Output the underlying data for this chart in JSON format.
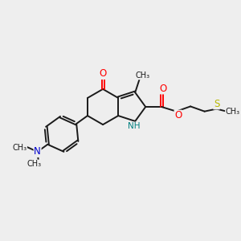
{
  "background_color": "#eeeeee",
  "figsize": [
    3.0,
    3.0
  ],
  "dpi": 100,
  "bond_color": "#1a1a1a",
  "bond_width": 1.4,
  "atom_colors": {
    "O": "#ff0000",
    "N_blue": "#0000cc",
    "N_teal": "#008080",
    "S": "#b8b800",
    "C": "#1a1a1a"
  },
  "font_size": 7.5,
  "xlim": [
    0,
    10
  ],
  "ylim": [
    0,
    10
  ]
}
